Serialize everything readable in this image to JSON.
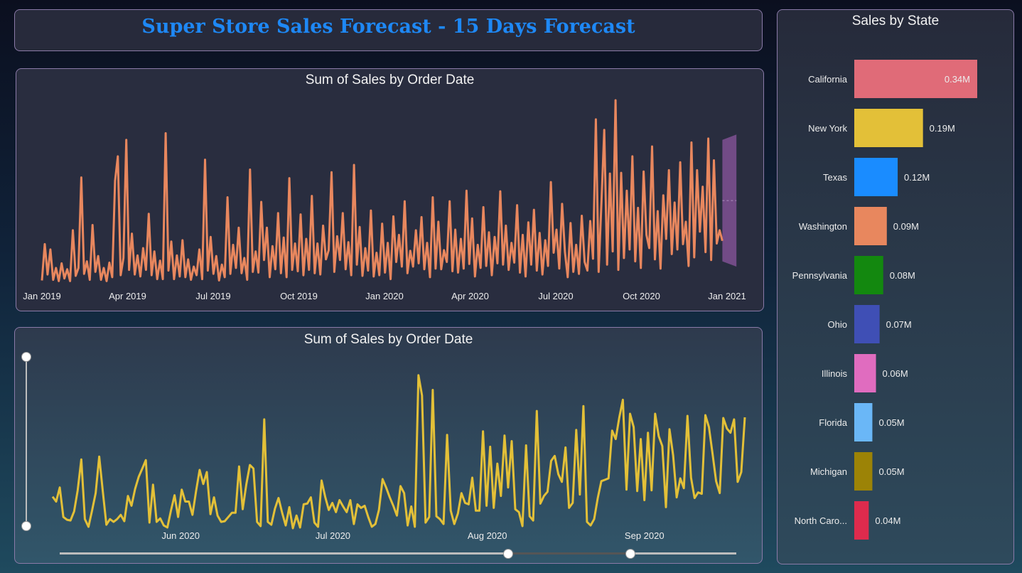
{
  "title": "Super Store Sales Forecast - 15 Days Forecast",
  "colors": {
    "title": "#1e88f5",
    "line1": "#e8875e",
    "line2": "#e3c038",
    "forecast": "#7a4f8e",
    "axis_text": "#ececec"
  },
  "chart_data": [
    {
      "type": "line",
      "title": "Sum of Sales by Order Date",
      "xlabel": "Order Date",
      "ylabel": "Sum of Sales",
      "x_ticks": [
        "Jan 2019",
        "Apr 2019",
        "Jul 2019",
        "Oct 2019",
        "Jan 2020",
        "Apr 2020",
        "Jul 2020",
        "Oct 2020",
        "Jan 2021"
      ],
      "x_range_days": [
        0,
        731
      ],
      "y_range": [
        0,
        28000
      ],
      "forecast_horizon_days": 15,
      "series_name": "Sum of Sales",
      "series": [
        {
          "x": 0,
          "y": 700
        },
        {
          "x": 3,
          "y": 6200
        },
        {
          "x": 6,
          "y": 1600
        },
        {
          "x": 9,
          "y": 5400
        },
        {
          "x": 12,
          "y": 800
        },
        {
          "x": 15,
          "y": 2600
        },
        {
          "x": 18,
          "y": 600
        },
        {
          "x": 21,
          "y": 3300
        },
        {
          "x": 24,
          "y": 1000
        },
        {
          "x": 27,
          "y": 2400
        },
        {
          "x": 30,
          "y": 600
        },
        {
          "x": 33,
          "y": 8300
        },
        {
          "x": 36,
          "y": 1400
        },
        {
          "x": 39,
          "y": 2600
        },
        {
          "x": 42,
          "y": 16300
        },
        {
          "x": 45,
          "y": 1700
        },
        {
          "x": 48,
          "y": 3600
        },
        {
          "x": 51,
          "y": 800
        },
        {
          "x": 54,
          "y": 9100
        },
        {
          "x": 57,
          "y": 2000
        },
        {
          "x": 60,
          "y": 4400
        },
        {
          "x": 63,
          "y": 800
        },
        {
          "x": 66,
          "y": 2600
        },
        {
          "x": 69,
          "y": 600
        },
        {
          "x": 72,
          "y": 3400
        },
        {
          "x": 75,
          "y": 1200
        },
        {
          "x": 78,
          "y": 15800
        },
        {
          "x": 81,
          "y": 19500
        },
        {
          "x": 84,
          "y": 1500
        },
        {
          "x": 87,
          "y": 4100
        },
        {
          "x": 90,
          "y": 22000
        },
        {
          "x": 93,
          "y": 2300
        },
        {
          "x": 96,
          "y": 7800
        },
        {
          "x": 99,
          "y": 1600
        },
        {
          "x": 102,
          "y": 4500
        },
        {
          "x": 105,
          "y": 1300
        },
        {
          "x": 108,
          "y": 5600
        },
        {
          "x": 111,
          "y": 2300
        },
        {
          "x": 114,
          "y": 10800
        },
        {
          "x": 117,
          "y": 1500
        },
        {
          "x": 120,
          "y": 5100
        },
        {
          "x": 123,
          "y": 900
        },
        {
          "x": 126,
          "y": 3700
        },
        {
          "x": 129,
          "y": 900
        },
        {
          "x": 132,
          "y": 23000
        },
        {
          "x": 135,
          "y": 2200
        },
        {
          "x": 138,
          "y": 6600
        },
        {
          "x": 141,
          "y": 900
        },
        {
          "x": 144,
          "y": 4500
        },
        {
          "x": 147,
          "y": 1300
        },
        {
          "x": 150,
          "y": 6800
        },
        {
          "x": 153,
          "y": 1200
        },
        {
          "x": 156,
          "y": 3900
        },
        {
          "x": 159,
          "y": 800
        },
        {
          "x": 162,
          "y": 2800
        },
        {
          "x": 165,
          "y": 1500
        },
        {
          "x": 168,
          "y": 5400
        },
        {
          "x": 171,
          "y": 900
        },
        {
          "x": 174,
          "y": 19000
        },
        {
          "x": 177,
          "y": 2200
        },
        {
          "x": 180,
          "y": 7300
        },
        {
          "x": 183,
          "y": 1700
        },
        {
          "x": 186,
          "y": 4400
        },
        {
          "x": 189,
          "y": 700
        },
        {
          "x": 192,
          "y": 3100
        },
        {
          "x": 195,
          "y": 1200
        },
        {
          "x": 198,
          "y": 13300
        },
        {
          "x": 201,
          "y": 1700
        },
        {
          "x": 204,
          "y": 6100
        },
        {
          "x": 207,
          "y": 2600
        },
        {
          "x": 210,
          "y": 8700
        },
        {
          "x": 213,
          "y": 1800
        },
        {
          "x": 216,
          "y": 4100
        },
        {
          "x": 219,
          "y": 800
        },
        {
          "x": 222,
          "y": 17500
        },
        {
          "x": 225,
          "y": 2000
        },
        {
          "x": 228,
          "y": 5100
        },
        {
          "x": 231,
          "y": 1900
        },
        {
          "x": 234,
          "y": 12600
        },
        {
          "x": 237,
          "y": 3800
        },
        {
          "x": 240,
          "y": 8700
        },
        {
          "x": 243,
          "y": 1200
        },
        {
          "x": 246,
          "y": 5900
        },
        {
          "x": 249,
          "y": 2400
        },
        {
          "x": 252,
          "y": 10900
        },
        {
          "x": 255,
          "y": 1800
        },
        {
          "x": 258,
          "y": 7200
        },
        {
          "x": 261,
          "y": 1200
        },
        {
          "x": 264,
          "y": 16200
        },
        {
          "x": 267,
          "y": 2300
        },
        {
          "x": 270,
          "y": 6300
        },
        {
          "x": 273,
          "y": 2100
        },
        {
          "x": 276,
          "y": 10700
        },
        {
          "x": 279,
          "y": 1500
        },
        {
          "x": 282,
          "y": 7000
        },
        {
          "x": 285,
          "y": 2300
        },
        {
          "x": 288,
          "y": 13500
        },
        {
          "x": 291,
          "y": 1800
        },
        {
          "x": 294,
          "y": 6300
        },
        {
          "x": 297,
          "y": 1600
        },
        {
          "x": 300,
          "y": 9000
        },
        {
          "x": 303,
          "y": 3900
        },
        {
          "x": 306,
          "y": 5300
        },
        {
          "x": 309,
          "y": 17100
        },
        {
          "x": 312,
          "y": 2000
        },
        {
          "x": 315,
          "y": 7400
        },
        {
          "x": 318,
          "y": 3800
        },
        {
          "x": 321,
          "y": 10900
        },
        {
          "x": 324,
          "y": 2400
        },
        {
          "x": 327,
          "y": 6500
        },
        {
          "x": 330,
          "y": 1500
        },
        {
          "x": 333,
          "y": 18200
        },
        {
          "x": 336,
          "y": 3100
        },
        {
          "x": 339,
          "y": 8800
        },
        {
          "x": 342,
          "y": 1400
        },
        {
          "x": 345,
          "y": 5600
        },
        {
          "x": 348,
          "y": 2200
        },
        {
          "x": 351,
          "y": 11300
        },
        {
          "x": 354,
          "y": 1300
        },
        {
          "x": 357,
          "y": 4900
        },
        {
          "x": 360,
          "y": 1500
        },
        {
          "x": 363,
          "y": 9300
        },
        {
          "x": 366,
          "y": 1900
        },
        {
          "x": 369,
          "y": 6400
        },
        {
          "x": 372,
          "y": 900
        },
        {
          "x": 375,
          "y": 10400
        },
        {
          "x": 378,
          "y": 3500
        },
        {
          "x": 381,
          "y": 7600
        },
        {
          "x": 384,
          "y": 2800
        },
        {
          "x": 387,
          "y": 12700
        },
        {
          "x": 390,
          "y": 1800
        },
        {
          "x": 393,
          "y": 5200
        },
        {
          "x": 396,
          "y": 2800
        },
        {
          "x": 399,
          "y": 8300
        },
        {
          "x": 402,
          "y": 3300
        },
        {
          "x": 405,
          "y": 10300
        },
        {
          "x": 408,
          "y": 2400
        },
        {
          "x": 411,
          "y": 6400
        },
        {
          "x": 414,
          "y": 1200
        },
        {
          "x": 417,
          "y": 13300
        },
        {
          "x": 420,
          "y": 2500
        },
        {
          "x": 423,
          "y": 9600
        },
        {
          "x": 426,
          "y": 2400
        },
        {
          "x": 429,
          "y": 5300
        },
        {
          "x": 432,
          "y": 3500
        },
        {
          "x": 435,
          "y": 12700
        },
        {
          "x": 438,
          "y": 2100
        },
        {
          "x": 441,
          "y": 8400
        },
        {
          "x": 444,
          "y": 1900
        },
        {
          "x": 447,
          "y": 7000
        },
        {
          "x": 450,
          "y": 2500
        },
        {
          "x": 453,
          "y": 14300
        },
        {
          "x": 456,
          "y": 3200
        },
        {
          "x": 459,
          "y": 10100
        },
        {
          "x": 462,
          "y": 1300
        },
        {
          "x": 465,
          "y": 6100
        },
        {
          "x": 468,
          "y": 2600
        },
        {
          "x": 471,
          "y": 11800
        },
        {
          "x": 474,
          "y": 2900
        },
        {
          "x": 477,
          "y": 8000
        },
        {
          "x": 480,
          "y": 1500
        },
        {
          "x": 483,
          "y": 7300
        },
        {
          "x": 486,
          "y": 3300
        },
        {
          "x": 489,
          "y": 14200
        },
        {
          "x": 492,
          "y": 3100
        },
        {
          "x": 495,
          "y": 9000
        },
        {
          "x": 498,
          "y": 2300
        },
        {
          "x": 501,
          "y": 6400
        },
        {
          "x": 504,
          "y": 3400
        },
        {
          "x": 507,
          "y": 12100
        },
        {
          "x": 510,
          "y": 1900
        },
        {
          "x": 513,
          "y": 7600
        },
        {
          "x": 516,
          "y": 1300
        },
        {
          "x": 519,
          "y": 9500
        },
        {
          "x": 522,
          "y": 3100
        },
        {
          "x": 525,
          "y": 11400
        },
        {
          "x": 528,
          "y": 2200
        },
        {
          "x": 531,
          "y": 7900
        },
        {
          "x": 534,
          "y": 1600
        },
        {
          "x": 537,
          "y": 6800
        },
        {
          "x": 540,
          "y": 2900
        },
        {
          "x": 543,
          "y": 15600
        },
        {
          "x": 546,
          "y": 4900
        },
        {
          "x": 549,
          "y": 8400
        },
        {
          "x": 552,
          "y": 2500
        },
        {
          "x": 555,
          "y": 12300
        },
        {
          "x": 558,
          "y": 5000
        },
        {
          "x": 561,
          "y": 1200
        },
        {
          "x": 564,
          "y": 9400
        },
        {
          "x": 567,
          "y": 2000
        },
        {
          "x": 570,
          "y": 6100
        },
        {
          "x": 573,
          "y": 1700
        },
        {
          "x": 576,
          "y": 10500
        },
        {
          "x": 579,
          "y": 3500
        },
        {
          "x": 582,
          "y": 2200
        },
        {
          "x": 585,
          "y": 9700
        },
        {
          "x": 588,
          "y": 4000
        },
        {
          "x": 591,
          "y": 25100
        },
        {
          "x": 594,
          "y": 2000
        },
        {
          "x": 597,
          "y": 12600
        },
        {
          "x": 600,
          "y": 23500
        },
        {
          "x": 603,
          "y": 3100
        },
        {
          "x": 606,
          "y": 16900
        },
        {
          "x": 609,
          "y": 5100
        },
        {
          "x": 612,
          "y": 28000
        },
        {
          "x": 615,
          "y": 2300
        },
        {
          "x": 618,
          "y": 17000
        },
        {
          "x": 621,
          "y": 4100
        },
        {
          "x": 624,
          "y": 14300
        },
        {
          "x": 627,
          "y": 5400
        },
        {
          "x": 630,
          "y": 19500
        },
        {
          "x": 633,
          "y": 3600
        },
        {
          "x": 636,
          "y": 11700
        },
        {
          "x": 639,
          "y": 2600
        },
        {
          "x": 642,
          "y": 17200
        },
        {
          "x": 645,
          "y": 7600
        },
        {
          "x": 648,
          "y": 5600
        },
        {
          "x": 651,
          "y": 21000
        },
        {
          "x": 654,
          "y": 3900
        },
        {
          "x": 657,
          "y": 11200
        },
        {
          "x": 660,
          "y": 2500
        },
        {
          "x": 663,
          "y": 13600
        },
        {
          "x": 666,
          "y": 7000
        },
        {
          "x": 669,
          "y": 17400
        },
        {
          "x": 672,
          "y": 4700
        },
        {
          "x": 675,
          "y": 12500
        },
        {
          "x": 678,
          "y": 5400
        },
        {
          "x": 681,
          "y": 18600
        },
        {
          "x": 684,
          "y": 6200
        },
        {
          "x": 687,
          "y": 9600
        },
        {
          "x": 690,
          "y": 2900
        },
        {
          "x": 693,
          "y": 21600
        },
        {
          "x": 696,
          "y": 4200
        },
        {
          "x": 699,
          "y": 17400
        },
        {
          "x": 702,
          "y": 8100
        },
        {
          "x": 705,
          "y": 14900
        },
        {
          "x": 708,
          "y": 5000
        },
        {
          "x": 711,
          "y": 22200
        },
        {
          "x": 714,
          "y": 3800
        },
        {
          "x": 717,
          "y": 18900
        },
        {
          "x": 720,
          "y": 6300
        },
        {
          "x": 723,
          "y": 8300
        },
        {
          "x": 726,
          "y": 6700
        }
      ]
    },
    {
      "type": "line",
      "title": "Sum of Sales by Order Date",
      "xlabel": "Order Date",
      "ylabel": "Sum of Sales",
      "x_ticks": [
        "Jun 2020",
        "Jul 2020",
        "Aug 2020",
        "Sep 2020"
      ],
      "x_range": [
        "2020-05-15",
        "2020-09-25"
      ],
      "y_range": [
        0,
        24000
      ],
      "series_name": "Sum of Sales",
      "values": [
        4500,
        3800,
        5800,
        1600,
        1200,
        1100,
        2400,
        5400,
        9800,
        1300,
        200,
        2500,
        5000,
        10200,
        5200,
        500,
        1300,
        900,
        1300,
        1900,
        1000,
        4600,
        3200,
        5600,
        7300,
        8500,
        9700,
        800,
        6200,
        900,
        1400,
        400,
        100,
        2500,
        4700,
        1600,
        5500,
        3800,
        3800,
        1900,
        5300,
        8300,
        6300,
        8000,
        2000,
        4400,
        1800,
        900,
        1000,
        1600,
        2200,
        2200,
        8800,
        2700,
        6200,
        9000,
        8500,
        900,
        300,
        15500,
        900,
        500,
        2800,
        4300,
        2200,
        400,
        3000,
        0,
        1800,
        100,
        3400,
        3500,
        4400,
        800,
        200,
        6800,
        4500,
        2600,
        3600,
        2300,
        4000,
        3100,
        2300,
        4000,
        600,
        3400,
        2900,
        3200,
        1600,
        200,
        600,
        2600,
        7000,
        5800,
        4400,
        3200,
        1800,
        6000,
        5000,
        400,
        3100,
        200,
        21800,
        18900,
        800,
        1600,
        19700,
        1700,
        1300,
        600,
        13300,
        2500,
        600,
        2100,
        5000,
        3600,
        3400,
        7200,
        2500,
        2500,
        13800,
        3200,
        11600,
        2900,
        9200,
        4600,
        13200,
        5800,
        12400,
        2700,
        2300,
        300,
        11800,
        1700,
        1100,
        16700,
        3500,
        4600,
        5200,
        9600,
        10300,
        7700,
        6600,
        11500,
        2900,
        3600,
        14000,
        4800,
        17400,
        900,
        400,
        1300,
        4300,
        6700,
        6900,
        7100,
        13900,
        12700,
        15800,
        18300,
        5500,
        16300,
        14400,
        5300,
        12700,
        4000,
        13600,
        5400,
        16300,
        13100,
        11700,
        3000,
        14100,
        10400,
        4400,
        7100,
        5700,
        16000,
        7200,
        4300,
        5100,
        4900,
        16100,
        14400,
        10600,
        6700,
        5000,
        15700,
        14200,
        13600,
        15500,
        6600,
        8000,
        15800
      ]
    },
    {
      "type": "bar",
      "orientation": "horizontal",
      "title": "Sales by State",
      "categories": [
        "California",
        "New York",
        "Texas",
        "Washington",
        "Pennsylvania",
        "Ohio",
        "Illinois",
        "Florida",
        "Michigan",
        "North Caro..."
      ],
      "values": [
        0.34,
        0.19,
        0.12,
        0.09,
        0.08,
        0.07,
        0.06,
        0.05,
        0.05,
        0.04
      ],
      "value_labels": [
        "0.34M",
        "0.19M",
        "0.12M",
        "0.09M",
        "0.08M",
        "0.07M",
        "0.06M",
        "0.05M",
        "0.05M",
        "0.04M"
      ],
      "unit": "M",
      "colors": [
        "#e06b78",
        "#e3c038",
        "#1a8cff",
        "#e8875e",
        "#13880f",
        "#3f4fb5",
        "#e06cbf",
        "#6ab7f7",
        "#9c8306",
        "#de2b4d"
      ]
    }
  ]
}
